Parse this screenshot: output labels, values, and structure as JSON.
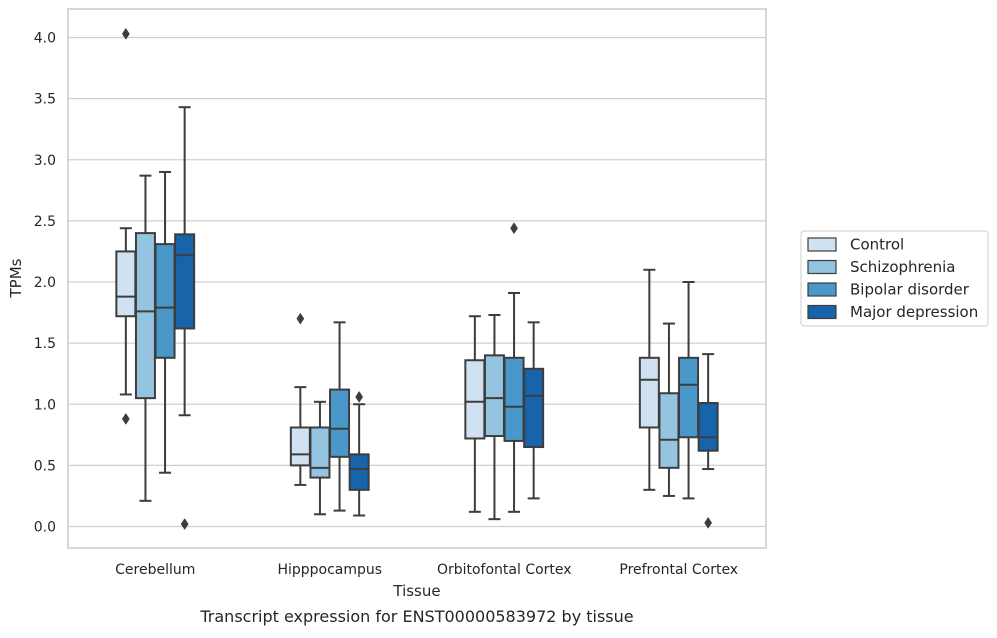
{
  "chart_data": {
    "type": "box",
    "title": "",
    "caption": "Transcript expression for ENST00000583972 by tissue",
    "xlabel": "Tissue",
    "ylabel": "TPMs",
    "ylim": [
      -0.18,
      4.24
    ],
    "yticks": [
      0.0,
      0.5,
      1.0,
      1.5,
      2.0,
      2.5,
      3.0,
      3.5,
      4.0
    ],
    "ytick_labels": [
      "0.0",
      "0.5",
      "1.0",
      "1.5",
      "2.0",
      "2.5",
      "3.0",
      "3.5",
      "4.0"
    ],
    "categories": [
      "Cerebellum",
      "Hipppocampus",
      "Orbitofontal Cortex",
      "Prefrontal Cortex"
    ],
    "grid": "horizontal",
    "legend_position": "right",
    "series": [
      {
        "name": "Control",
        "color": "#d0e1f2",
        "boxes": [
          {
            "q1": 1.72,
            "median": 1.88,
            "q3": 2.25,
            "whisker_low": 1.08,
            "whisker_high": 2.44,
            "outliers": [
              4.03,
              0.88
            ]
          },
          {
            "q1": 0.5,
            "median": 0.59,
            "q3": 0.81,
            "whisker_low": 0.34,
            "whisker_high": 1.14,
            "outliers": [
              1.7
            ]
          },
          {
            "q1": 0.72,
            "median": 1.02,
            "q3": 1.36,
            "whisker_low": 0.12,
            "whisker_high": 1.72,
            "outliers": []
          },
          {
            "q1": 0.81,
            "median": 1.2,
            "q3": 1.38,
            "whisker_low": 0.3,
            "whisker_high": 2.1,
            "outliers": []
          }
        ]
      },
      {
        "name": "Schizophrenia",
        "color": "#94c4df",
        "boxes": [
          {
            "q1": 1.05,
            "median": 1.76,
            "q3": 2.4,
            "whisker_low": 0.21,
            "whisker_high": 2.87,
            "outliers": []
          },
          {
            "q1": 0.4,
            "median": 0.48,
            "q3": 0.81,
            "whisker_low": 0.1,
            "whisker_high": 1.02,
            "outliers": []
          },
          {
            "q1": 0.74,
            "median": 1.05,
            "q3": 1.4,
            "whisker_low": 0.06,
            "whisker_high": 1.73,
            "outliers": []
          },
          {
            "q1": 0.48,
            "median": 0.71,
            "q3": 1.09,
            "whisker_low": 0.25,
            "whisker_high": 1.66,
            "outliers": []
          }
        ]
      },
      {
        "name": "Bipolar disorder",
        "color": "#4a98c9",
        "boxes": [
          {
            "q1": 1.38,
            "median": 1.79,
            "q3": 2.31,
            "whisker_low": 0.44,
            "whisker_high": 2.9,
            "outliers": []
          },
          {
            "q1": 0.57,
            "median": 0.8,
            "q3": 1.12,
            "whisker_low": 0.13,
            "whisker_high": 1.67,
            "outliers": []
          },
          {
            "q1": 0.7,
            "median": 0.98,
            "q3": 1.38,
            "whisker_low": 0.12,
            "whisker_high": 1.91,
            "outliers": [
              2.44
            ]
          },
          {
            "q1": 0.73,
            "median": 1.16,
            "q3": 1.38,
            "whisker_low": 0.23,
            "whisker_high": 2.0,
            "outliers": []
          }
        ]
      },
      {
        "name": "Major depression",
        "color": "#1764ab",
        "boxes": [
          {
            "q1": 1.62,
            "median": 2.22,
            "q3": 2.39,
            "whisker_low": 0.91,
            "whisker_high": 3.43,
            "outliers": [
              0.02
            ]
          },
          {
            "q1": 0.3,
            "median": 0.47,
            "q3": 0.59,
            "whisker_low": 0.09,
            "whisker_high": 1.0,
            "outliers": [
              1.06
            ]
          },
          {
            "q1": 0.65,
            "median": 1.07,
            "q3": 1.29,
            "whisker_low": 0.23,
            "whisker_high": 1.67,
            "outliers": []
          },
          {
            "q1": 0.62,
            "median": 0.73,
            "q3": 1.01,
            "whisker_low": 0.47,
            "whisker_high": 1.41,
            "outliers": [
              0.03
            ]
          }
        ]
      }
    ]
  },
  "colors": {
    "box_edge": "#3d3d3d",
    "grid": "#d0d0d0",
    "frame": "#cccccc"
  }
}
